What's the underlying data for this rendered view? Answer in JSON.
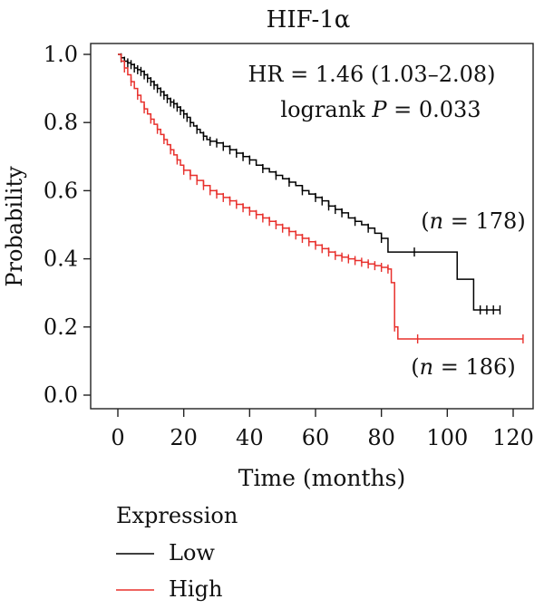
{
  "chart_data": {
    "type": "line",
    "title": "HIF-1α",
    "xlabel": "Time (months)",
    "ylabel": "Probability",
    "xlim": [
      0,
      125
    ],
    "ylim": [
      0,
      1.05
    ],
    "xticks": [
      "0",
      "20",
      "40",
      "60",
      "80",
      "100",
      "120"
    ],
    "yticks": [
      "0.0",
      "0.2",
      "0.4",
      "0.6",
      "0.8",
      "1.0"
    ],
    "grid": false,
    "annotations": {
      "hr": "HR = 1.46 (1.03–2.08)",
      "logrank_prefix": "logrank ",
      "logrank_p": "P",
      "logrank_value": " = 0.033",
      "n_low_open": "(",
      "n_italic": "n",
      "n_low_value": " = 178)",
      "n_high_value": " = 186)"
    },
    "legend": {
      "title": "Expression",
      "placement": "bottom-left"
    },
    "series": [
      {
        "name": "Low",
        "color": "#000000",
        "steps": [
          [
            0,
            1.0
          ],
          [
            1,
            0.99
          ],
          [
            2,
            0.98
          ],
          [
            3,
            0.975
          ],
          [
            4,
            0.97
          ],
          [
            5,
            0.96
          ],
          [
            6,
            0.955
          ],
          [
            7,
            0.95
          ],
          [
            8,
            0.94
          ],
          [
            9,
            0.93
          ],
          [
            10,
            0.92
          ],
          [
            11,
            0.91
          ],
          [
            12,
            0.9
          ],
          [
            13,
            0.89
          ],
          [
            14,
            0.88
          ],
          [
            15,
            0.87
          ],
          [
            16,
            0.86
          ],
          [
            17,
            0.855
          ],
          [
            18,
            0.845
          ],
          [
            19,
            0.835
          ],
          [
            20,
            0.825
          ],
          [
            21,
            0.815
          ],
          [
            22,
            0.8
          ],
          [
            23,
            0.79
          ],
          [
            24,
            0.78
          ],
          [
            25,
            0.77
          ],
          [
            26,
            0.76
          ],
          [
            27,
            0.75
          ],
          [
            28,
            0.745
          ],
          [
            30,
            0.74
          ],
          [
            32,
            0.73
          ],
          [
            34,
            0.72
          ],
          [
            36,
            0.71
          ],
          [
            38,
            0.7
          ],
          [
            40,
            0.69
          ],
          [
            42,
            0.675
          ],
          [
            44,
            0.665
          ],
          [
            46,
            0.655
          ],
          [
            48,
            0.645
          ],
          [
            50,
            0.635
          ],
          [
            52,
            0.625
          ],
          [
            54,
            0.615
          ],
          [
            56,
            0.6
          ],
          [
            58,
            0.59
          ],
          [
            60,
            0.58
          ],
          [
            62,
            0.57
          ],
          [
            64,
            0.555
          ],
          [
            66,
            0.545
          ],
          [
            68,
            0.535
          ],
          [
            70,
            0.52
          ],
          [
            72,
            0.51
          ],
          [
            74,
            0.5
          ],
          [
            76,
            0.49
          ],
          [
            78,
            0.475
          ],
          [
            80,
            0.46
          ],
          [
            82,
            0.42
          ],
          [
            90,
            0.42
          ],
          [
            100,
            0.42
          ],
          [
            103,
            0.34
          ],
          [
            106,
            0.34
          ],
          [
            108,
            0.25
          ],
          [
            116,
            0.25
          ]
        ],
        "censor_x": [
          1,
          2,
          3,
          4,
          5,
          6,
          7,
          8,
          9,
          10,
          11,
          12,
          13,
          14,
          15,
          16,
          17,
          18,
          19,
          20,
          21,
          22,
          24,
          26,
          28,
          30,
          32,
          34,
          36,
          38,
          40,
          44,
          48,
          52,
          56,
          60,
          62,
          64,
          66,
          68,
          72,
          76,
          80,
          90,
          110,
          112,
          114,
          116
        ]
      },
      {
        "name": "High",
        "color": "#e8302c",
        "steps": [
          [
            0,
            1.0
          ],
          [
            1,
            0.98
          ],
          [
            2,
            0.96
          ],
          [
            3,
            0.94
          ],
          [
            4,
            0.92
          ],
          [
            5,
            0.9
          ],
          [
            6,
            0.88
          ],
          [
            7,
            0.86
          ],
          [
            8,
            0.84
          ],
          [
            9,
            0.825
          ],
          [
            10,
            0.81
          ],
          [
            11,
            0.795
          ],
          [
            12,
            0.78
          ],
          [
            13,
            0.765
          ],
          [
            14,
            0.75
          ],
          [
            15,
            0.735
          ],
          [
            16,
            0.72
          ],
          [
            17,
            0.705
          ],
          [
            18,
            0.69
          ],
          [
            19,
            0.675
          ],
          [
            20,
            0.66
          ],
          [
            22,
            0.645
          ],
          [
            24,
            0.63
          ],
          [
            26,
            0.615
          ],
          [
            28,
            0.6
          ],
          [
            30,
            0.59
          ],
          [
            32,
            0.58
          ],
          [
            34,
            0.57
          ],
          [
            36,
            0.56
          ],
          [
            38,
            0.55
          ],
          [
            40,
            0.54
          ],
          [
            42,
            0.53
          ],
          [
            44,
            0.52
          ],
          [
            46,
            0.51
          ],
          [
            48,
            0.5
          ],
          [
            50,
            0.49
          ],
          [
            52,
            0.48
          ],
          [
            54,
            0.47
          ],
          [
            56,
            0.46
          ],
          [
            58,
            0.45
          ],
          [
            60,
            0.44
          ],
          [
            62,
            0.43
          ],
          [
            64,
            0.42
          ],
          [
            66,
            0.41
          ],
          [
            68,
            0.405
          ],
          [
            70,
            0.4
          ],
          [
            72,
            0.395
          ],
          [
            74,
            0.39
          ],
          [
            76,
            0.385
          ],
          [
            78,
            0.38
          ],
          [
            80,
            0.375
          ],
          [
            82,
            0.37
          ],
          [
            83,
            0.33
          ],
          [
            84,
            0.2
          ],
          [
            85,
            0.165
          ],
          [
            95,
            0.165
          ],
          [
            123,
            0.165
          ]
        ],
        "censor_x": [
          2,
          4,
          6,
          8,
          10,
          12,
          14,
          16,
          18,
          20,
          22,
          24,
          26,
          28,
          30,
          32,
          34,
          36,
          38,
          40,
          42,
          44,
          46,
          48,
          50,
          52,
          54,
          56,
          58,
          60,
          62,
          64,
          66,
          68,
          70,
          72,
          74,
          76,
          78,
          80,
          82,
          84,
          91,
          123
        ]
      }
    ]
  }
}
